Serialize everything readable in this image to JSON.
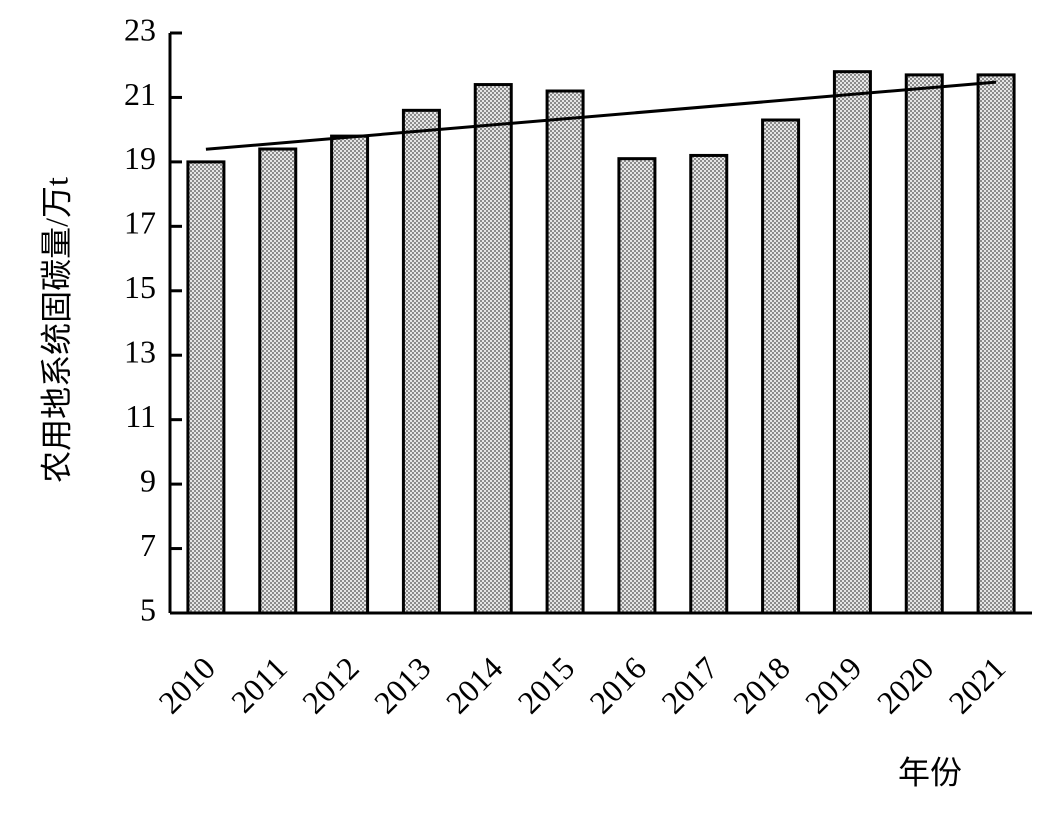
{
  "chart_data": {
    "type": "bar",
    "y_axis_label": "农用地系统固碳量/万t",
    "x_axis_label": "年份",
    "categories": [
      "2010",
      "2011",
      "2012",
      "2013",
      "2014",
      "2015",
      "2016",
      "2017",
      "2018",
      "2019",
      "2020",
      "2021"
    ],
    "values": [
      19.0,
      19.4,
      19.8,
      20.6,
      21.4,
      21.2,
      19.1,
      19.2,
      20.3,
      21.8,
      21.7,
      21.7
    ],
    "color": "#8c8c8c",
    "ylim": [
      5,
      23
    ],
    "yticks": [
      5,
      7,
      9,
      11,
      13,
      15,
      17,
      19,
      21,
      23
    ],
    "trendline": true,
    "grid": false
  }
}
